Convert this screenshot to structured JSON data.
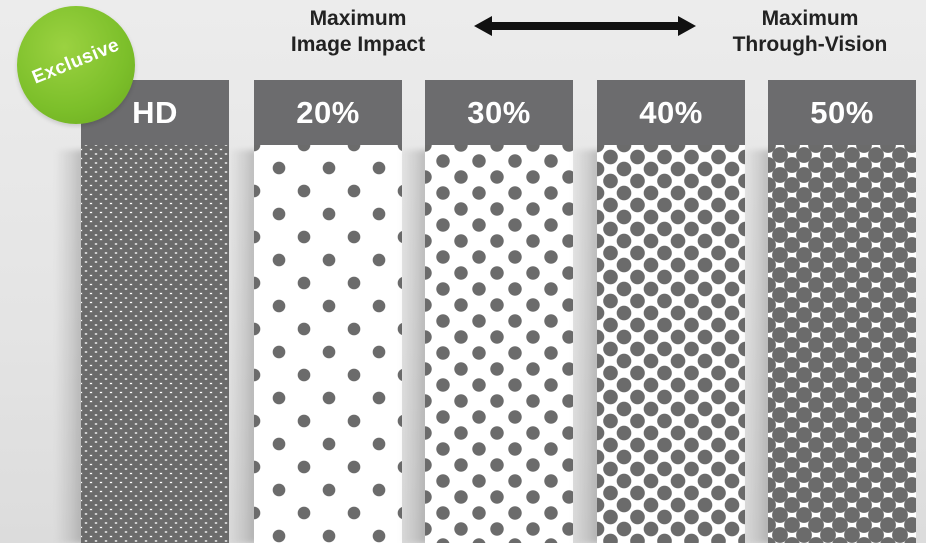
{
  "labels": {
    "left": [
      "Maximum",
      "Image Impact"
    ],
    "right": [
      "Maximum",
      "Through-Vision"
    ]
  },
  "badge": "Exclusive",
  "panels": [
    {
      "label": "HD"
    },
    {
      "label": "20%"
    },
    {
      "label": "30%"
    },
    {
      "label": "40%"
    },
    {
      "label": "50%"
    }
  ],
  "colors": {
    "header": "#6c6c6e",
    "dot": "#6b6b6b",
    "badge": "#7cbf2a",
    "background": "#e6e6e6"
  }
}
